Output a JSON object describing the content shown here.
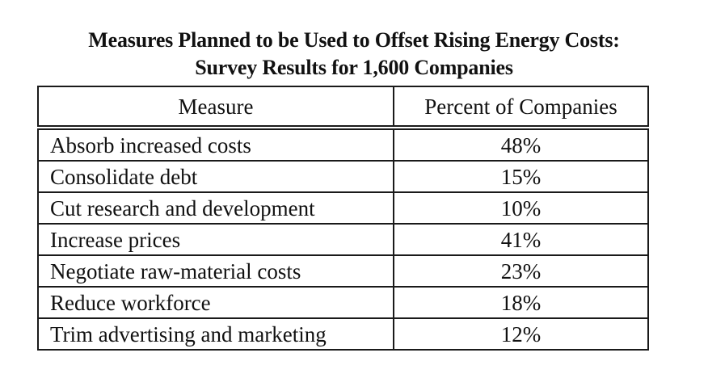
{
  "title_line1": "Measures Planned to be Used to Offset Rising Energy Costs:",
  "title_line2": "Survey Results for 1,600 Companies",
  "table": {
    "headers": [
      "Measure",
      "Percent of Companies"
    ],
    "rows": [
      {
        "measure": "Absorb increased costs",
        "percent": "48%"
      },
      {
        "measure": "Consolidate debt",
        "percent": "15%"
      },
      {
        "measure": "Cut research and development",
        "percent": "10%"
      },
      {
        "measure": "Increase prices",
        "percent": "41%"
      },
      {
        "measure": "Negotiate raw-material costs",
        "percent": "23%"
      },
      {
        "measure": "Reduce workforce",
        "percent": "18%"
      },
      {
        "measure": "Trim advertising and marketing",
        "percent": "12%"
      }
    ]
  }
}
